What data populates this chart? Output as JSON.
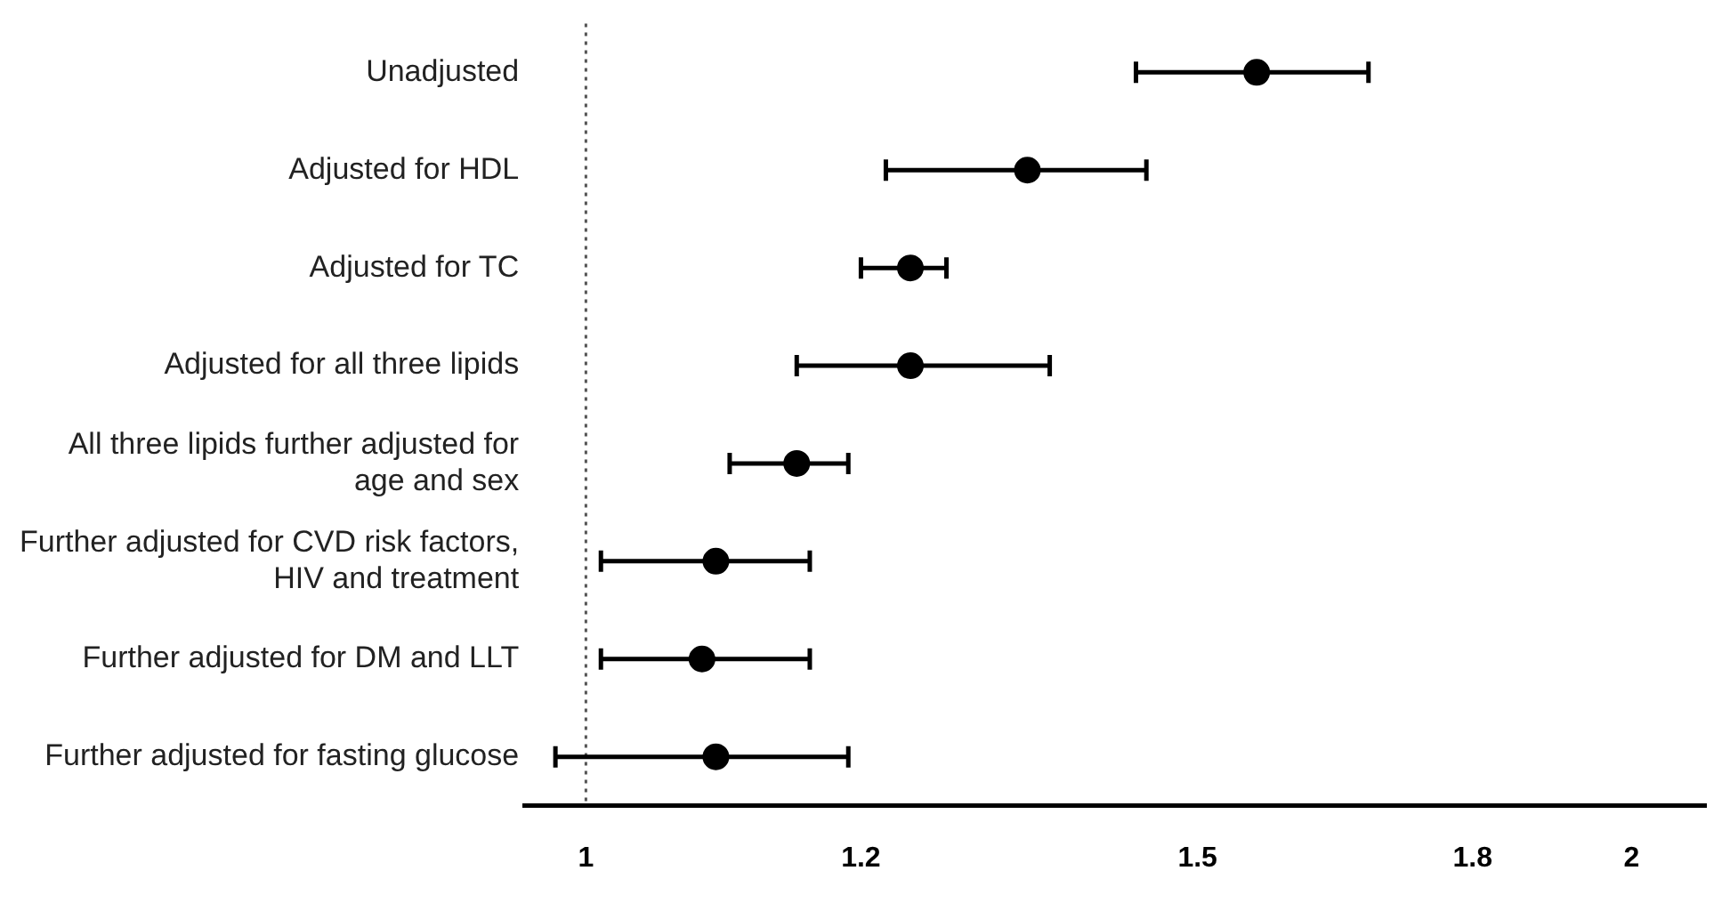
{
  "chart_data": {
    "type": "scatter",
    "orientation": "horizontal",
    "log": "x",
    "categories": [
      "Unadjusted",
      "Adjusted for HDL",
      "Adjusted for TC",
      "Adjusted for all three lipids",
      "All three lipids further adjusted for age and sex",
      "Further adjusted for CVD risk factors, HIV and treatment",
      "Further adjusted for DM and LLT",
      "Further adjusted for fasting glucose"
    ],
    "values": [
      1.56,
      1.34,
      1.24,
      1.24,
      1.15,
      1.09,
      1.08,
      1.09
    ],
    "errors": [
      [
        1.44,
        1.68
      ],
      [
        1.22,
        1.45
      ],
      [
        1.2,
        1.27
      ],
      [
        1.15,
        1.36
      ],
      [
        1.1,
        1.19
      ],
      [
        1.01,
        1.16
      ],
      [
        1.01,
        1.16
      ],
      [
        0.98,
        1.19
      ]
    ],
    "color": "#000000",
    "marker": "circle",
    "xlim": [
      0.96,
      2.1
    ],
    "xticks": [
      1,
      1.2,
      1.5,
      1.8,
      2
    ],
    "ref_lines": [
      {
        "axis": "x",
        "value": 1,
        "color": "#555555",
        "line_style": "dotted"
      }
    ],
    "grid": false,
    "legend": false,
    "tick_labels": "xy"
  }
}
